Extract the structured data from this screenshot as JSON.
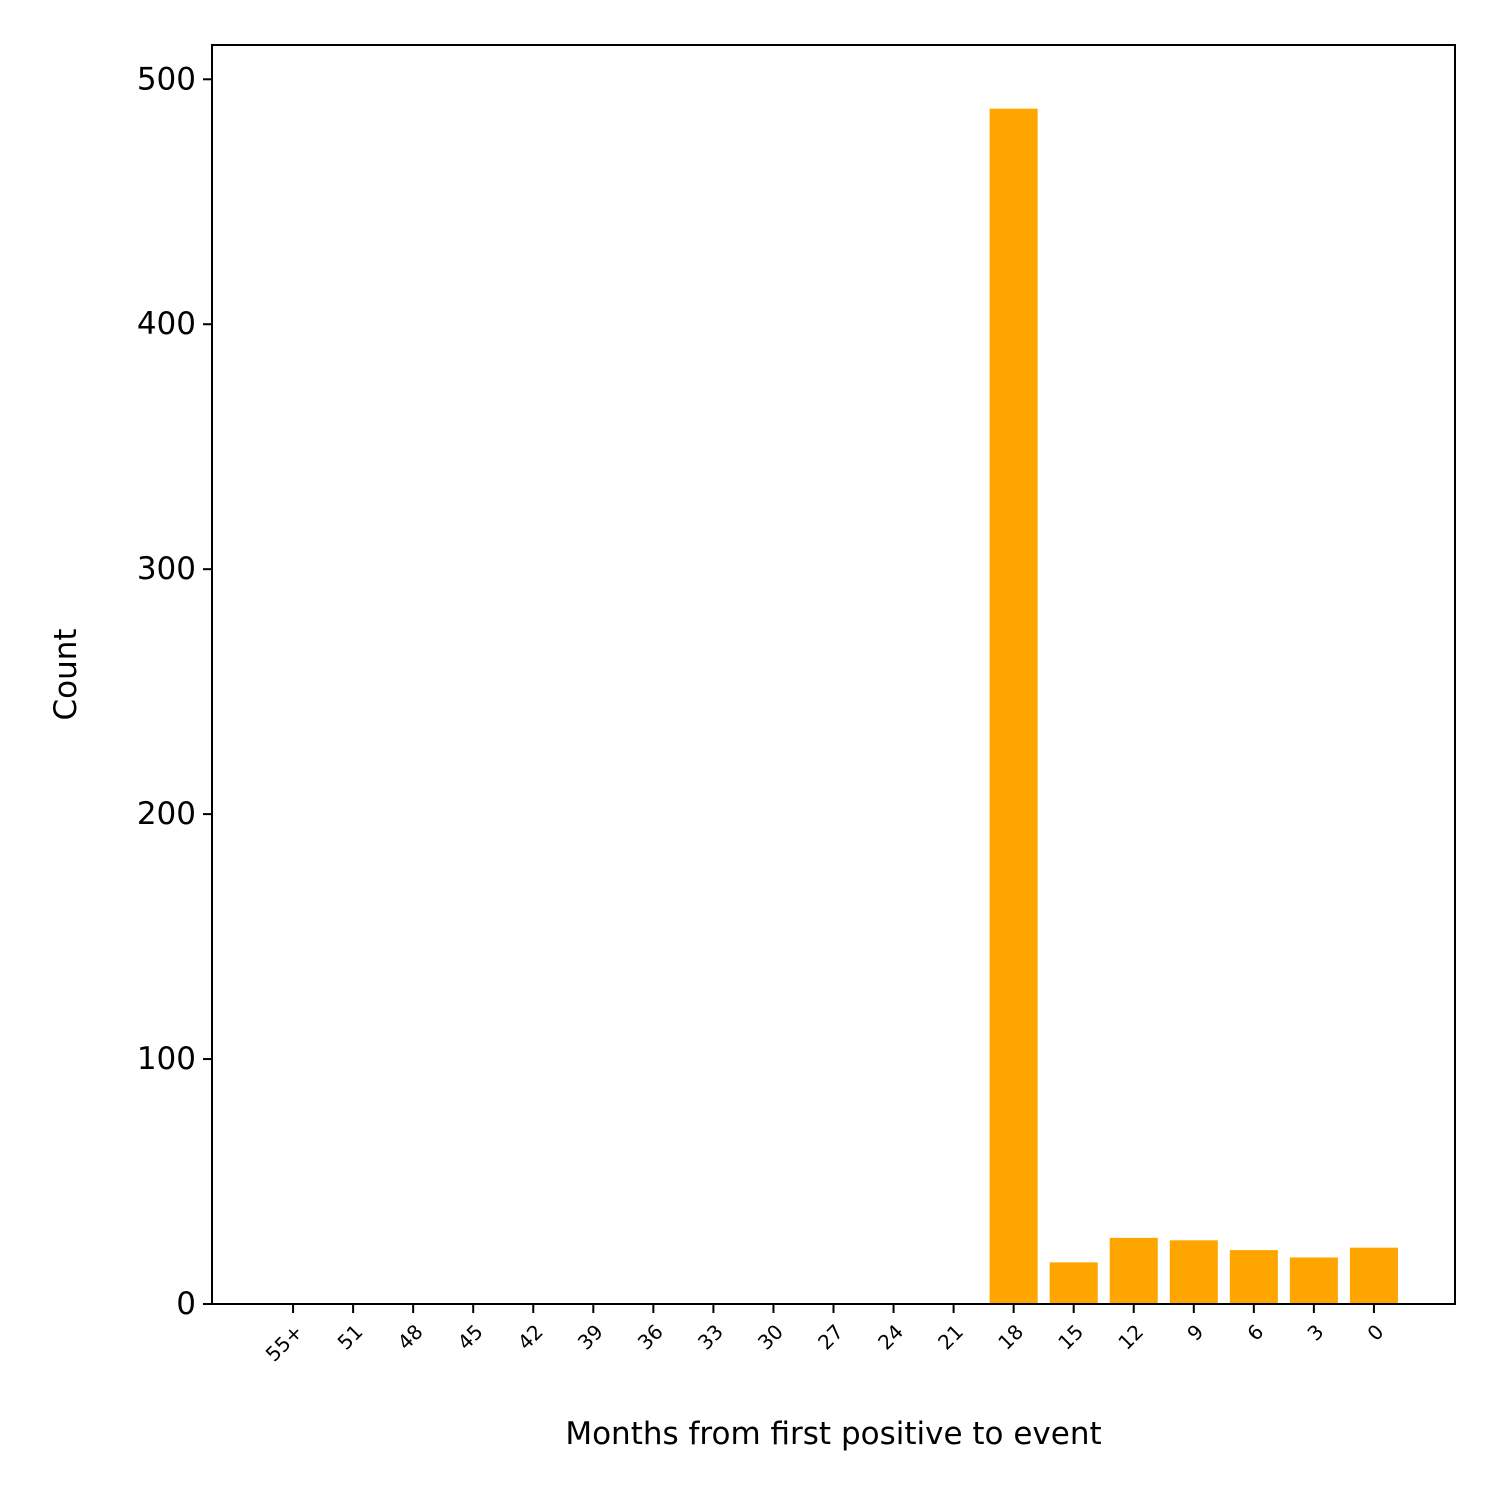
{
  "chart_data": {
    "type": "bar",
    "title": "",
    "xlabel": "Months from first positive to event",
    "ylabel": "Count",
    "categories": [
      "55+",
      "51",
      "48",
      "45",
      "42",
      "39",
      "36",
      "33",
      "30",
      "27",
      "24",
      "21",
      "18",
      "15",
      "12",
      "9",
      "6",
      "3",
      "0"
    ],
    "values": [
      0,
      0,
      0,
      0,
      0,
      0,
      0,
      0,
      0,
      0,
      0,
      0,
      488,
      17,
      27,
      26,
      22,
      19,
      23
    ],
    "ylim": [
      0,
      514
    ],
    "yticks": [
      0,
      100,
      200,
      300,
      400,
      500
    ],
    "bar_color": "#ffa500",
    "grid": false,
    "legend": "none"
  }
}
